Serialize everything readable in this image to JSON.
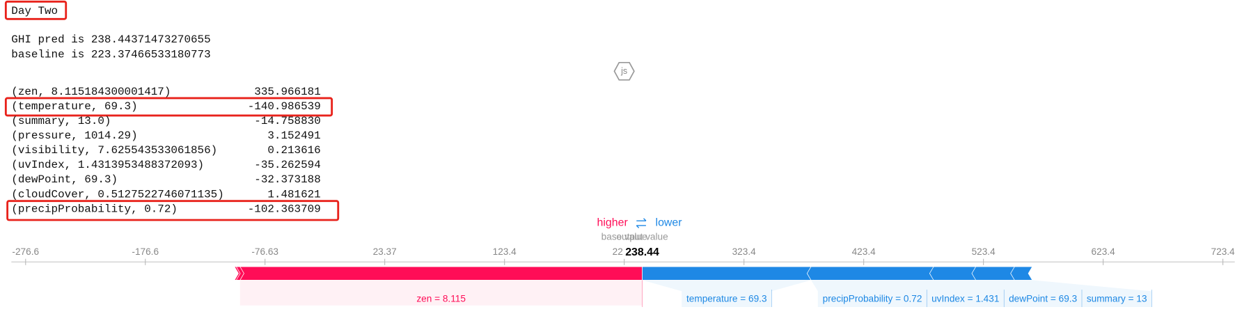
{
  "header": {
    "title": "Day Two"
  },
  "output": {
    "lines": [
      "GHI pred is 238.44371473270655",
      "baseline is 223.37466533180773"
    ]
  },
  "js_badge": "js",
  "table": {
    "rows": [
      [
        "(zen, 8.115184300001417)",
        "335.966181"
      ],
      [
        "(temperature, 69.3)",
        "-140.986539"
      ],
      [
        "(summary, 13.0)",
        "-14.758830"
      ],
      [
        "(pressure, 1014.29)",
        "3.152491"
      ],
      [
        "(visibility, 7.625543533061856)",
        "0.213616"
      ],
      [
        "(uvIndex, 1.4313953488372093)",
        "-35.262594"
      ],
      [
        "(dewPoint, 69.3)",
        "-32.373188"
      ],
      [
        "(cloudCover, 0.5127522746071135)",
        "1.481621"
      ],
      [
        "(precipProbability, 0.72)",
        "-102.363709"
      ]
    ]
  },
  "force_plot": {
    "higher_label": "higher",
    "lower_label": "lower",
    "base_value_label": "base value",
    "output_value_label": "output value",
    "base_value": 223.37466533180773,
    "output_value": {
      "value": 238.44371473270655,
      "label": "238.44"
    },
    "xlim": [
      -288.5,
      733.3
    ],
    "xticks": [
      -276.6,
      -176.6,
      -76.63,
      23.37,
      123.4,
      223.4,
      323.4,
      423.4,
      523.4,
      623.4,
      723.4
    ],
    "higher_color": "#ff0d57",
    "lower_color": "#1e88e5",
    "higher": [
      {
        "label": "zen = 8.115",
        "effect": 335.966181
      },
      {
        "effect": 3.152491
      },
      {
        "effect": 1.481621
      },
      {
        "effect": 0.213616
      }
    ],
    "lower": [
      {
        "label": "temperature = 69.3",
        "effect": 140.986539
      },
      {
        "label": "precipProbability = 0.72",
        "effect": 102.363709
      },
      {
        "label": "uvIndex = 1.431",
        "effect": 35.262594
      },
      {
        "label": "dewPoint = 69.3",
        "effect": 32.373188
      },
      {
        "label": "summary = 13",
        "effect": 14.75883
      }
    ]
  }
}
